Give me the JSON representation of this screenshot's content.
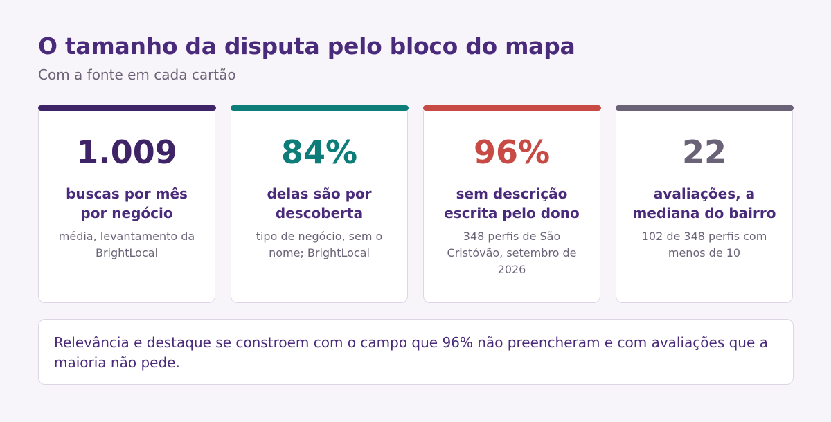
{
  "header": {
    "title": "O tamanho da disputa pelo bloco do mapa",
    "subtitle": "Com a fonte em cada cartão"
  },
  "cards": [
    {
      "value": "1.009",
      "label": "buscas por mês por negócio",
      "source": "média, levantamento da BrightLocal",
      "color": "#3e2466"
    },
    {
      "value": "84%",
      "label": "delas são por descoberta",
      "source": "tipo de negócio, sem o nome; BrightLocal",
      "color": "#0d7d7a"
    },
    {
      "value": "96%",
      "label": "sem descrição escrita pelo dono",
      "source": "348 perfis de São Cristóvão, setembro de 2026",
      "color": "#c84a45"
    },
    {
      "value": "22",
      "label": "avaliações, a mediana do bairro",
      "source": "102 de 348 perfis com menos de 10",
      "color": "#6a6378"
    }
  ],
  "note": {
    "text": "Relevância e destaque se constroem com o campo que 96% não preencheram e com avaliações que a maioria não pede."
  }
}
